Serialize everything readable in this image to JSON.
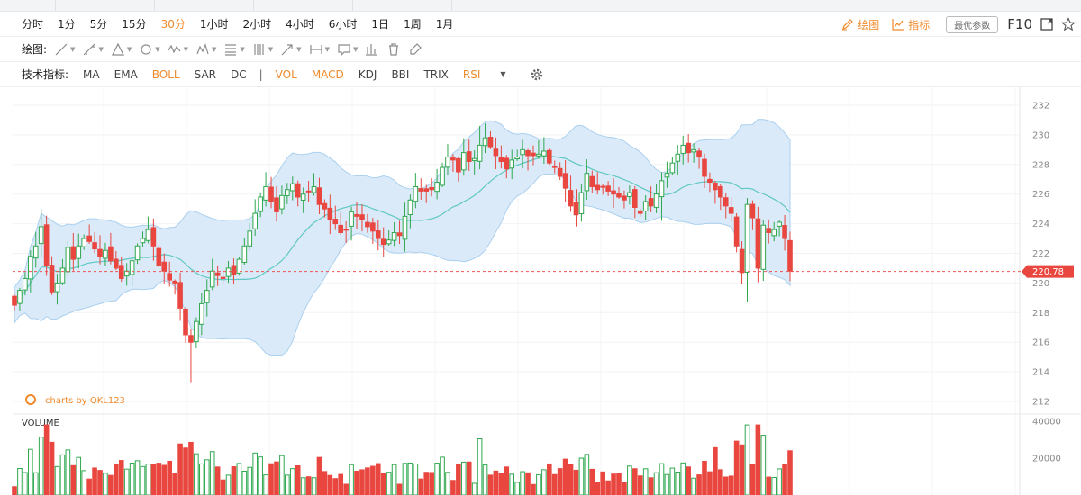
{
  "periods": [
    "分时",
    "1分",
    "5分",
    "15分",
    "30分",
    "1小时",
    "2小时",
    "4小时",
    "6小时",
    "1日",
    "1周",
    "1月"
  ],
  "active_period": "30分",
  "toolbar_right": {
    "draw": "绘图",
    "indicator": "指标",
    "params": "最优参数",
    "f10": "F10"
  },
  "draw_label": "绘图:",
  "indicator_label": "技术指标:",
  "indicators": [
    "MA",
    "EMA",
    "BOLL",
    "SAR",
    "DC",
    "|",
    "VOL",
    "MACD",
    "KDJ",
    "BBI",
    "TRIX",
    "RSI"
  ],
  "highlighted_indicators": [
    "BOLL",
    "VOL",
    "MACD",
    "RSI"
  ],
  "draw_tools": [
    "line-tool-icon",
    "ray-tool-icon",
    "triangle-tool-icon",
    "circle-tool-icon",
    "wave-tool-icon",
    "pattern-tool-icon",
    "fib-tool-icon",
    "channel-tool-icon",
    "arrow-tool-icon",
    "range-tool-icon",
    "note-tool-icon",
    "bar-tool-icon",
    "trash-icon",
    "brush-icon"
  ],
  "colors": {
    "up": "#2fa84f",
    "down": "#e8463f",
    "band_fill": "#dbeaf9",
    "band_line": "#a9d0ef",
    "mid_line": "#5fc8c2",
    "accent": "#f08a2c",
    "price_line": "#ef5350"
  },
  "watermark": "charts by QKL123",
  "chart_data": {
    "type": "candlestick",
    "price_axis": {
      "min": 212,
      "max": 232,
      "ticks": [
        232,
        230,
        228,
        226,
        224,
        222,
        220,
        218,
        216,
        214,
        212
      ]
    },
    "current_price": "220.78",
    "closes": [
      218.5,
      219.5,
      220.3,
      221.8,
      222.5,
      223.8,
      221.2,
      219.4,
      220.0,
      221.0,
      222.4,
      221.6,
      222.5,
      223.0,
      222.8,
      222.3,
      221.8,
      222.2,
      221.5,
      221.0,
      220.3,
      220.8,
      221.5,
      222.5,
      223.0,
      223.6,
      222.5,
      221.2,
      220.8,
      220.2,
      220.0,
      218.3,
      216.5,
      216.0,
      217.4,
      218.6,
      219.5,
      220.8,
      220.5,
      220.3,
      221.0,
      220.6,
      221.6,
      222.5,
      223.5,
      224.7,
      225.8,
      226.5,
      225.5,
      224.8,
      225.9,
      226.3,
      226.7,
      225.8,
      226.0,
      226.2,
      226.5,
      225.3,
      225.0,
      224.3,
      224.0,
      223.4,
      223.6,
      224.8,
      224.5,
      224.3,
      223.8,
      223.5,
      223.0,
      222.6,
      222.9,
      223.4,
      223.2,
      224.5,
      225.6,
      226.5,
      226.2,
      226.2,
      226.3,
      226.8,
      227.8,
      228.5,
      228.3,
      227.5,
      228.8,
      228.2,
      228.4,
      229.3,
      229.8,
      229.2,
      228.6,
      228.2,
      227.7,
      228.3,
      228.5,
      229.0,
      228.6,
      228.6,
      228.7,
      228.9,
      228.1,
      227.8,
      227.2,
      226.4,
      225.2,
      224.6,
      226.1,
      227.4,
      226.5,
      226.3,
      226.5,
      226.2,
      226.0,
      225.8,
      225.6,
      226.1,
      225.1,
      224.7,
      225.5,
      225.2,
      226.0,
      226.9,
      227.4,
      228.1,
      228.7,
      229.3,
      228.8,
      229.0,
      228.5,
      227.2,
      226.8,
      226.3,
      225.8,
      225.2,
      224.7,
      222.5,
      220.7,
      225.3,
      224.4,
      221.0,
      223.9,
      223.4,
      223.6,
      224.1,
      223.0,
      220.8
    ],
    "volume_axis": {
      "ticks": [
        40000,
        20000
      ]
    },
    "volume_label": "VOLUME"
  }
}
